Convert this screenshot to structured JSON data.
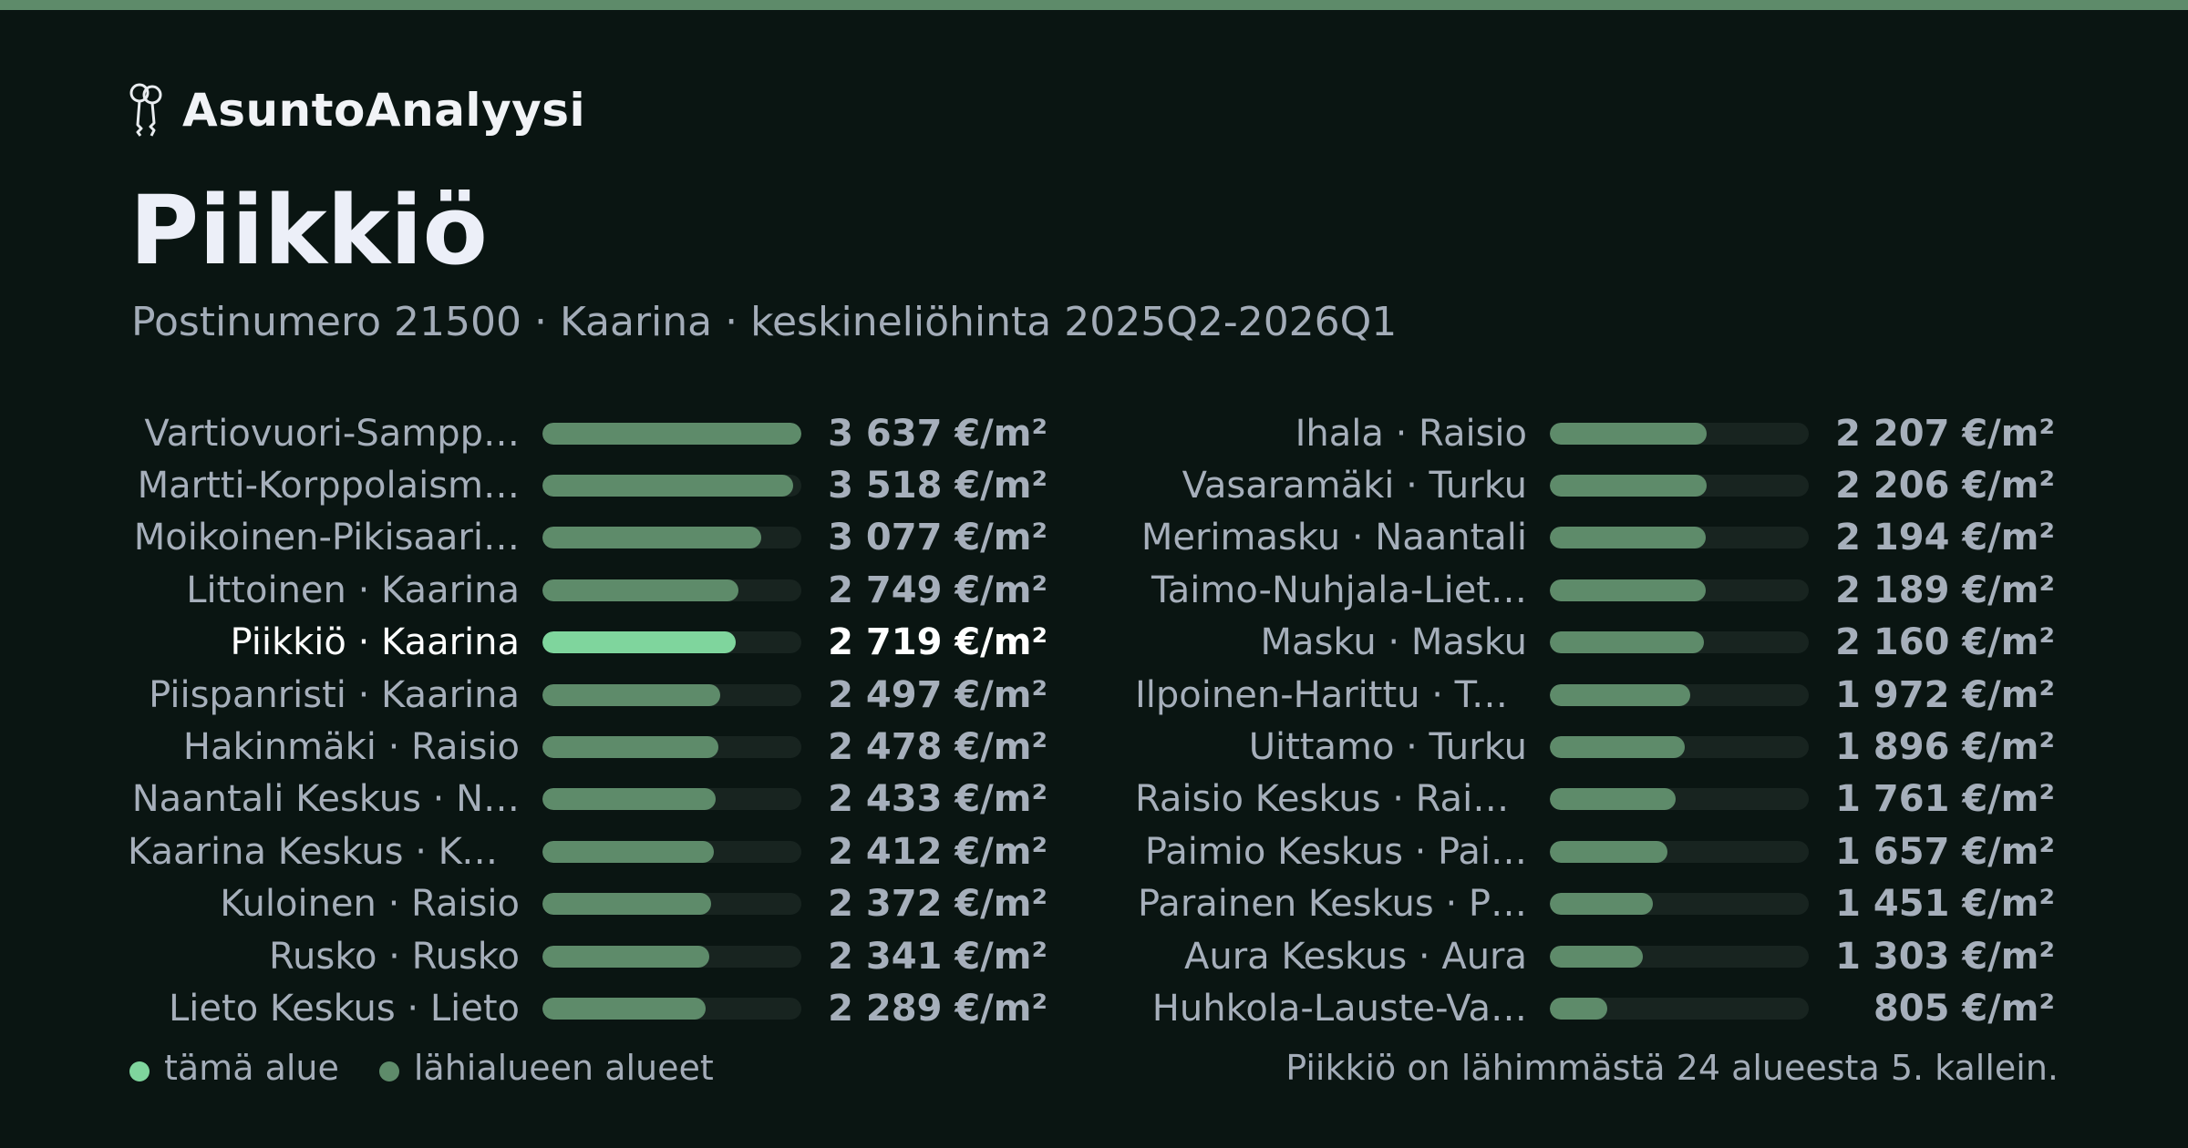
{
  "header": {
    "brand_icon": "keys-icon",
    "brand_name": "AsuntoAnalyysi",
    "title": "Piikkiö",
    "subtitle": "Postinumero 21500 · Kaarina · keskineliöhinta 2025Q2-2026Q1"
  },
  "colors": {
    "accent": "#5e8b6a",
    "highlight": "#7fd59d",
    "background": "#0a1512"
  },
  "chart_data": {
    "type": "bar",
    "orientation": "horizontal",
    "unit": "€/m²",
    "xlim": [
      0,
      3637
    ],
    "highlight_index": 4,
    "categories": [
      "Vartiovuori-Sampp…",
      "Martti-Korppolaism…",
      "Moikoinen-Pikisaari…",
      "Littoinen · Kaarina",
      "Piikkiö · Kaarina",
      "Piispanristi · Kaarina",
      "Hakinmäki · Raisio",
      "Naantali Keskus · N…",
      "Kaarina Keskus · Ka…",
      "Kuloinen · Raisio",
      "Rusko · Rusko",
      "Lieto Keskus · Lieto",
      "Ihala · Raisio",
      "Vasaramäki · Turku",
      "Merimasku · Naantali",
      "Taimo-Nuhjala-Liet…",
      "Masku · Masku",
      "Ilpoinen-Harittu · Tu…",
      "Uittamo · Turku",
      "Raisio Keskus · Rais…",
      "Paimio Keskus · Pai…",
      "Parainen Keskus · P…",
      "Aura Keskus · Aura",
      "Huhkola-Lauste-Va…"
    ],
    "values": [
      3637,
      3518,
      3077,
      2749,
      2719,
      2497,
      2478,
      2433,
      2412,
      2372,
      2341,
      2289,
      2207,
      2206,
      2194,
      2189,
      2160,
      1972,
      1896,
      1761,
      1657,
      1451,
      1303,
      805
    ],
    "value_labels": [
      "3 637 €/m²",
      "3 518 €/m²",
      "3 077 €/m²",
      "2 749 €/m²",
      "2 719 €/m²",
      "2 497 €/m²",
      "2 478 €/m²",
      "2 433 €/m²",
      "2 412 €/m²",
      "2 372 €/m²",
      "2 341 €/m²",
      "2 289 €/m²",
      "2 207 €/m²",
      "2 206 €/m²",
      "2 194 €/m²",
      "2 189 €/m²",
      "2 160 €/m²",
      "1 972 €/m²",
      "1 896 €/m²",
      "1 761 €/m²",
      "1 657 €/m²",
      "1 451 €/m²",
      "1 303 €/m²",
      "805 €/m²"
    ]
  },
  "legend": {
    "current": "tämä alue",
    "others": "lähialueen alueet"
  },
  "footnote": "Piikkiö on lähimmästä 24 alueesta 5. kallein."
}
